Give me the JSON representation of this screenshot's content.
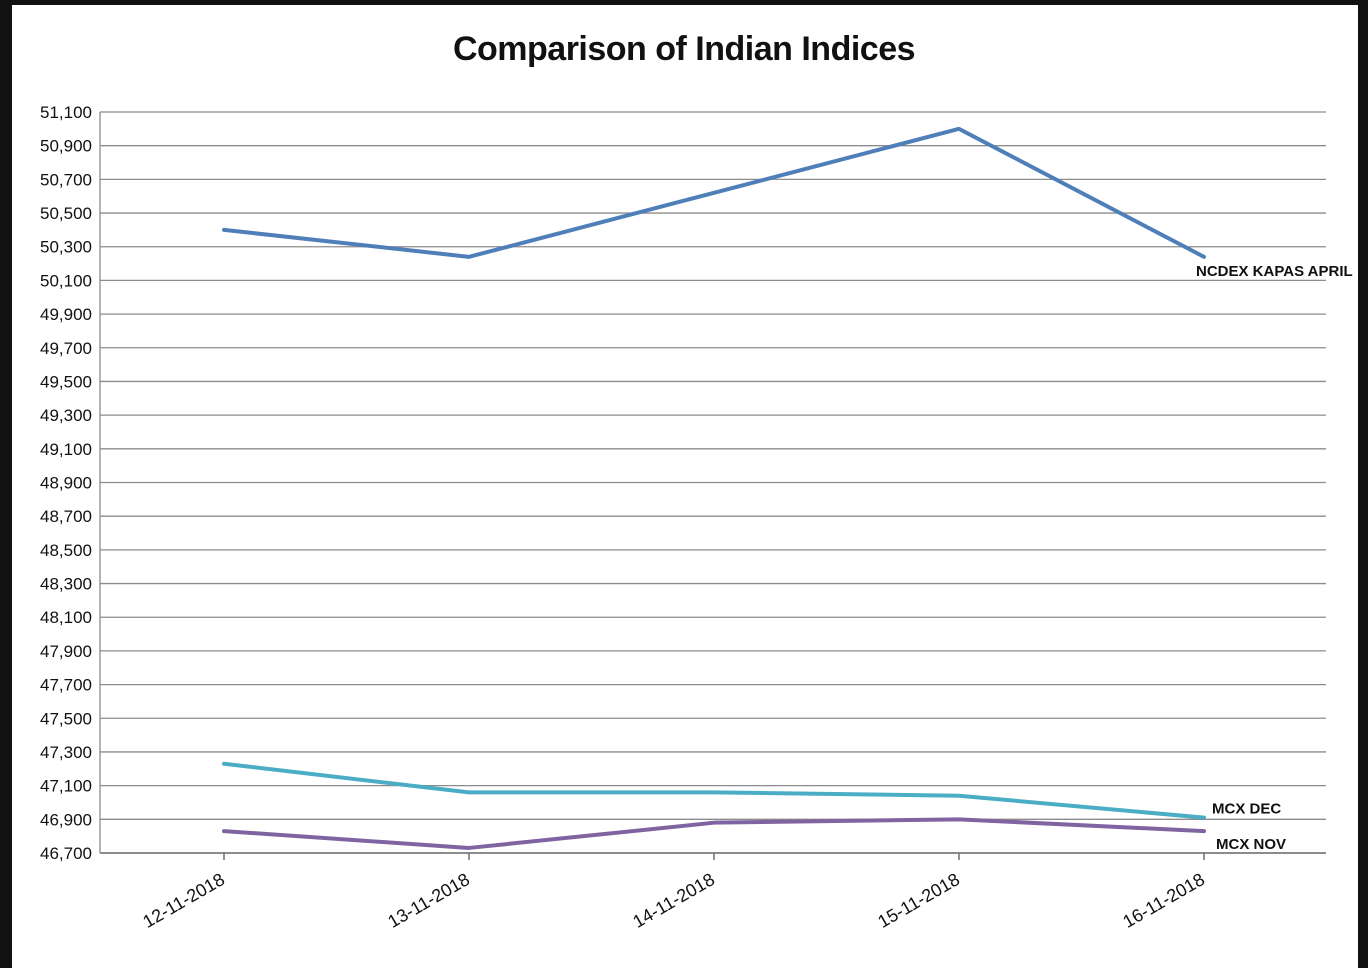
{
  "chart_data": {
    "type": "line",
    "title": "Comparison of Indian Indices",
    "xlabel": "",
    "ylabel": "",
    "categories": [
      "12-11-2018",
      "13-11-2018",
      "14-11-2018",
      "15-11-2018",
      "16-11-2018"
    ],
    "ylim": [
      46700,
      51100
    ],
    "yticks": [
      "51,100",
      "50,900",
      "50,700",
      "50,500",
      "50,300",
      "50,100",
      "49,900",
      "49,700",
      "49,500",
      "49,300",
      "49,100",
      "48,900",
      "48,700",
      "48,500",
      "48,300",
      "48,100",
      "47,900",
      "47,700",
      "47,500",
      "47,300",
      "47,100",
      "46,900",
      "46,700"
    ],
    "grid": true,
    "legend": "inline labels at line ends",
    "series": [
      {
        "name": "NCDEX KAPAS APRIL",
        "color": "#4f7fb9",
        "values": [
          50400,
          50240,
          50620,
          51000,
          50240
        ]
      },
      {
        "name": "MCX DEC",
        "color": "#4bacc6",
        "values": [
          47230,
          47060,
          47060,
          47040,
          46910
        ]
      },
      {
        "name": "MCX NOV",
        "color": "#8064a2",
        "values": [
          46830,
          46730,
          46880,
          46900,
          46830
        ]
      }
    ]
  }
}
